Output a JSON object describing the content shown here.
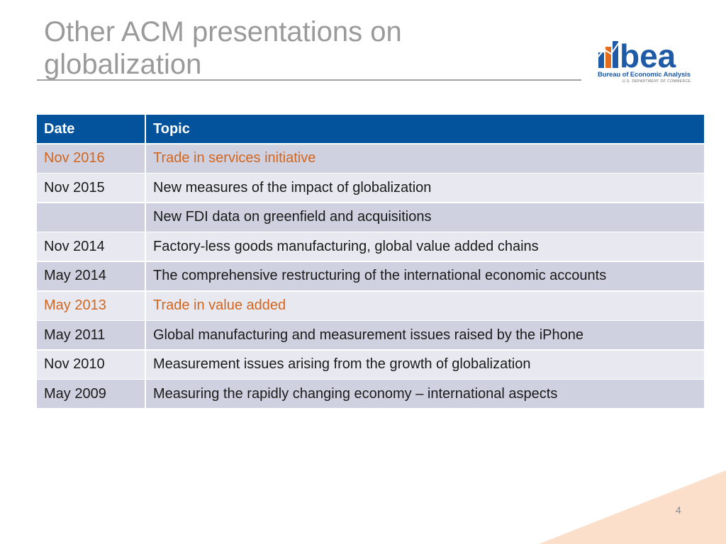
{
  "header": {
    "title_lines": [
      "Other ACM presentations on",
      "globalization"
    ],
    "logo": {
      "mark": "bea",
      "name": "Bureau of Economic Analysis",
      "department": "U.S. DEPARTMENT OF COMMERCE"
    }
  },
  "table": {
    "columns": [
      "Date",
      "Topic"
    ],
    "rows": [
      {
        "date": "Nov 2016",
        "topic": "Trade in services initiative",
        "highlight": true
      },
      {
        "date": "Nov 2015",
        "topic": "New measures of the impact of globalization",
        "highlight": false
      },
      {
        "date": null,
        "topic": "New FDI data on greenfield and acquisitions",
        "highlight": false
      },
      {
        "date": "Nov 2014",
        "topic": "Factory-less goods manufacturing, global value added chains",
        "highlight": false
      },
      {
        "date": "May 2014",
        "topic": "The comprehensive restructuring of the international economic accounts",
        "highlight": false
      },
      {
        "date": "May 2013",
        "topic": "Trade in value added",
        "highlight": true
      },
      {
        "date": "May 2011",
        "topic": "Global manufacturing and measurement issues raised by the iPhone",
        "highlight": false
      },
      {
        "date": "Nov 2010",
        "topic": "Measurement issues arising from the growth of globalization",
        "highlight": false
      },
      {
        "date": "May 2009",
        "topic": "Measuring the rapidly changing economy – international aspects",
        "highlight": false
      }
    ]
  },
  "footer": {
    "page_number": "4"
  }
}
